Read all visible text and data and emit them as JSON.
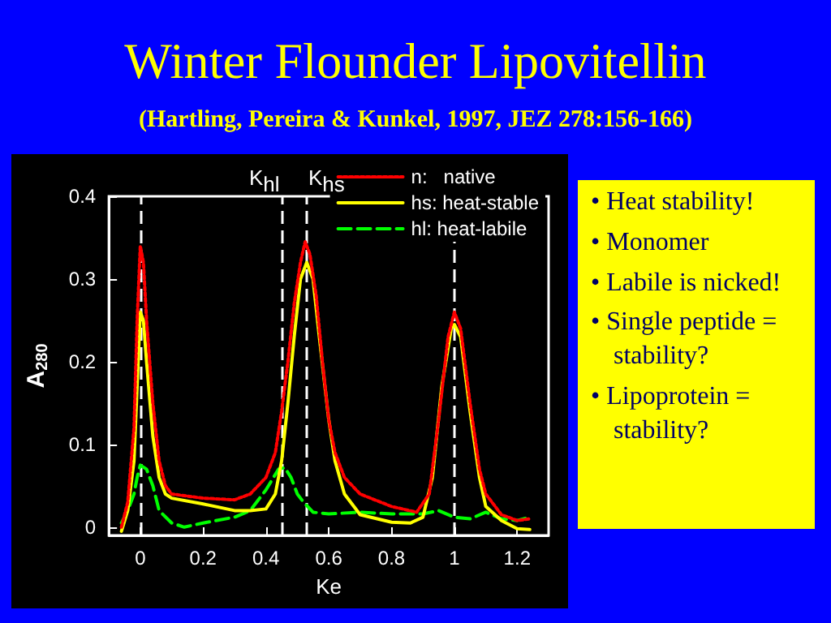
{
  "chart_data": {
    "type": "line",
    "title": "Winter Flounder Lipovitellin",
    "subtitle": "(Hartling, Pereira & Kunkel, 1997, JEZ 278:156-166)",
    "xlabel": "Ke",
    "ylabel": "A$_{280}$",
    "xlim": [
      -0.1,
      1.3
    ],
    "xticks": [
      0,
      0.2,
      0.4,
      0.6,
      0.8,
      1,
      1.2
    ],
    "ylim": [
      -0.01,
      0.4
    ],
    "yticks": [
      0,
      0.1,
      0.2,
      0.3,
      0.4
    ],
    "grid": false,
    "legend": "top right",
    "marker": "none",
    "series": [
      {
        "name": "n:   native",
        "color": "#ff0000",
        "line_style": "dotted",
        "x": [
          -0.06,
          -0.04,
          -0.02,
          -0.01,
          0,
          0.01,
          0.02,
          0.04,
          0.06,
          0.08,
          0.1,
          0.2,
          0.3,
          0.35,
          0.4,
          0.43,
          0.45,
          0.47,
          0.49,
          0.51,
          0.525,
          0.54,
          0.56,
          0.58,
          0.6,
          0.62,
          0.65,
          0.7,
          0.8,
          0.88,
          0.92,
          0.95,
          0.98,
          1,
          1.02,
          1.05,
          1.08,
          1.1,
          1.15,
          1.2,
          1.24
        ],
        "values": [
          0,
          0.03,
          0.12,
          0.25,
          0.34,
          0.32,
          0.25,
          0.15,
          0.08,
          0.05,
          0.04,
          0.035,
          0.033,
          0.04,
          0.06,
          0.09,
          0.14,
          0.2,
          0.27,
          0.32,
          0.345,
          0.33,
          0.28,
          0.2,
          0.13,
          0.09,
          0.06,
          0.04,
          0.025,
          0.018,
          0.04,
          0.13,
          0.23,
          0.26,
          0.24,
          0.15,
          0.07,
          0.04,
          0.015,
          0.008,
          0.01
        ]
      },
      {
        "name": "hs: heat-stable",
        "color": "#ffff00",
        "line_style": "solid",
        "x": [
          -0.06,
          -0.04,
          -0.02,
          -0.01,
          0,
          0.01,
          0.02,
          0.04,
          0.06,
          0.08,
          0.1,
          0.2,
          0.3,
          0.35,
          0.4,
          0.43,
          0.45,
          0.47,
          0.49,
          0.51,
          0.53,
          0.55,
          0.57,
          0.6,
          0.62,
          0.65,
          0.7,
          0.8,
          0.86,
          0.9,
          0.93,
          0.96,
          0.99,
          1,
          1.02,
          1.05,
          1.08,
          1.1,
          1.15,
          1.2,
          1.24
        ],
        "values": [
          -0.005,
          0.02,
          0.08,
          0.17,
          0.26,
          0.25,
          0.2,
          0.11,
          0.06,
          0.04,
          0.035,
          0.028,
          0.02,
          0.02,
          0.022,
          0.04,
          0.08,
          0.15,
          0.23,
          0.3,
          0.32,
          0.3,
          0.23,
          0.13,
          0.08,
          0.04,
          0.015,
          0.006,
          0.005,
          0.012,
          0.06,
          0.17,
          0.24,
          0.245,
          0.23,
          0.14,
          0.06,
          0.025,
          0.008,
          -0.002,
          -0.003
        ]
      },
      {
        "name": "hl: heat-labile",
        "color": "#00ff00",
        "line_style": "dashed",
        "x": [
          -0.06,
          -0.04,
          -0.02,
          -0.01,
          0,
          0.02,
          0.04,
          0.06,
          0.1,
          0.14,
          0.2,
          0.3,
          0.35,
          0.4,
          0.44,
          0.46,
          0.48,
          0.5,
          0.52,
          0.55,
          0.6,
          0.7,
          0.8,
          0.9,
          0.95,
          1,
          1.05,
          1.1,
          1.15,
          1.2,
          1.24
        ],
        "values": [
          0.005,
          0.02,
          0.04,
          0.06,
          0.075,
          0.07,
          0.05,
          0.02,
          0.005,
          0,
          0.005,
          0.012,
          0.02,
          0.045,
          0.07,
          0.072,
          0.06,
          0.04,
          0.03,
          0.018,
          0.016,
          0.018,
          0.016,
          0.016,
          0.02,
          0.012,
          0.01,
          0.018,
          0.01,
          0.008,
          0.012
        ]
      }
    ],
    "ref_lines": [
      {
        "axis": "x",
        "value": 0,
        "color": "#ffffff",
        "line_style": "dashed"
      },
      {
        "axis": "x",
        "value": 0.45,
        "label": "K$_{hl}$",
        "color": "#ffffff",
        "line_style": "dashed"
      },
      {
        "axis": "x",
        "value": 0.53,
        "label": "K$_{hs}$",
        "color": "#ffffff",
        "line_style": "dashed"
      },
      {
        "axis": "x",
        "value": 1,
        "color": "#ffffff",
        "line_style": "dashed"
      }
    ],
    "annotations": [
      "• Heat stability!",
      "• Monomer",
      "• Labile is nicked!",
      "• Single peptide = stability?",
      "• Lipoprotein = stability?"
    ]
  }
}
